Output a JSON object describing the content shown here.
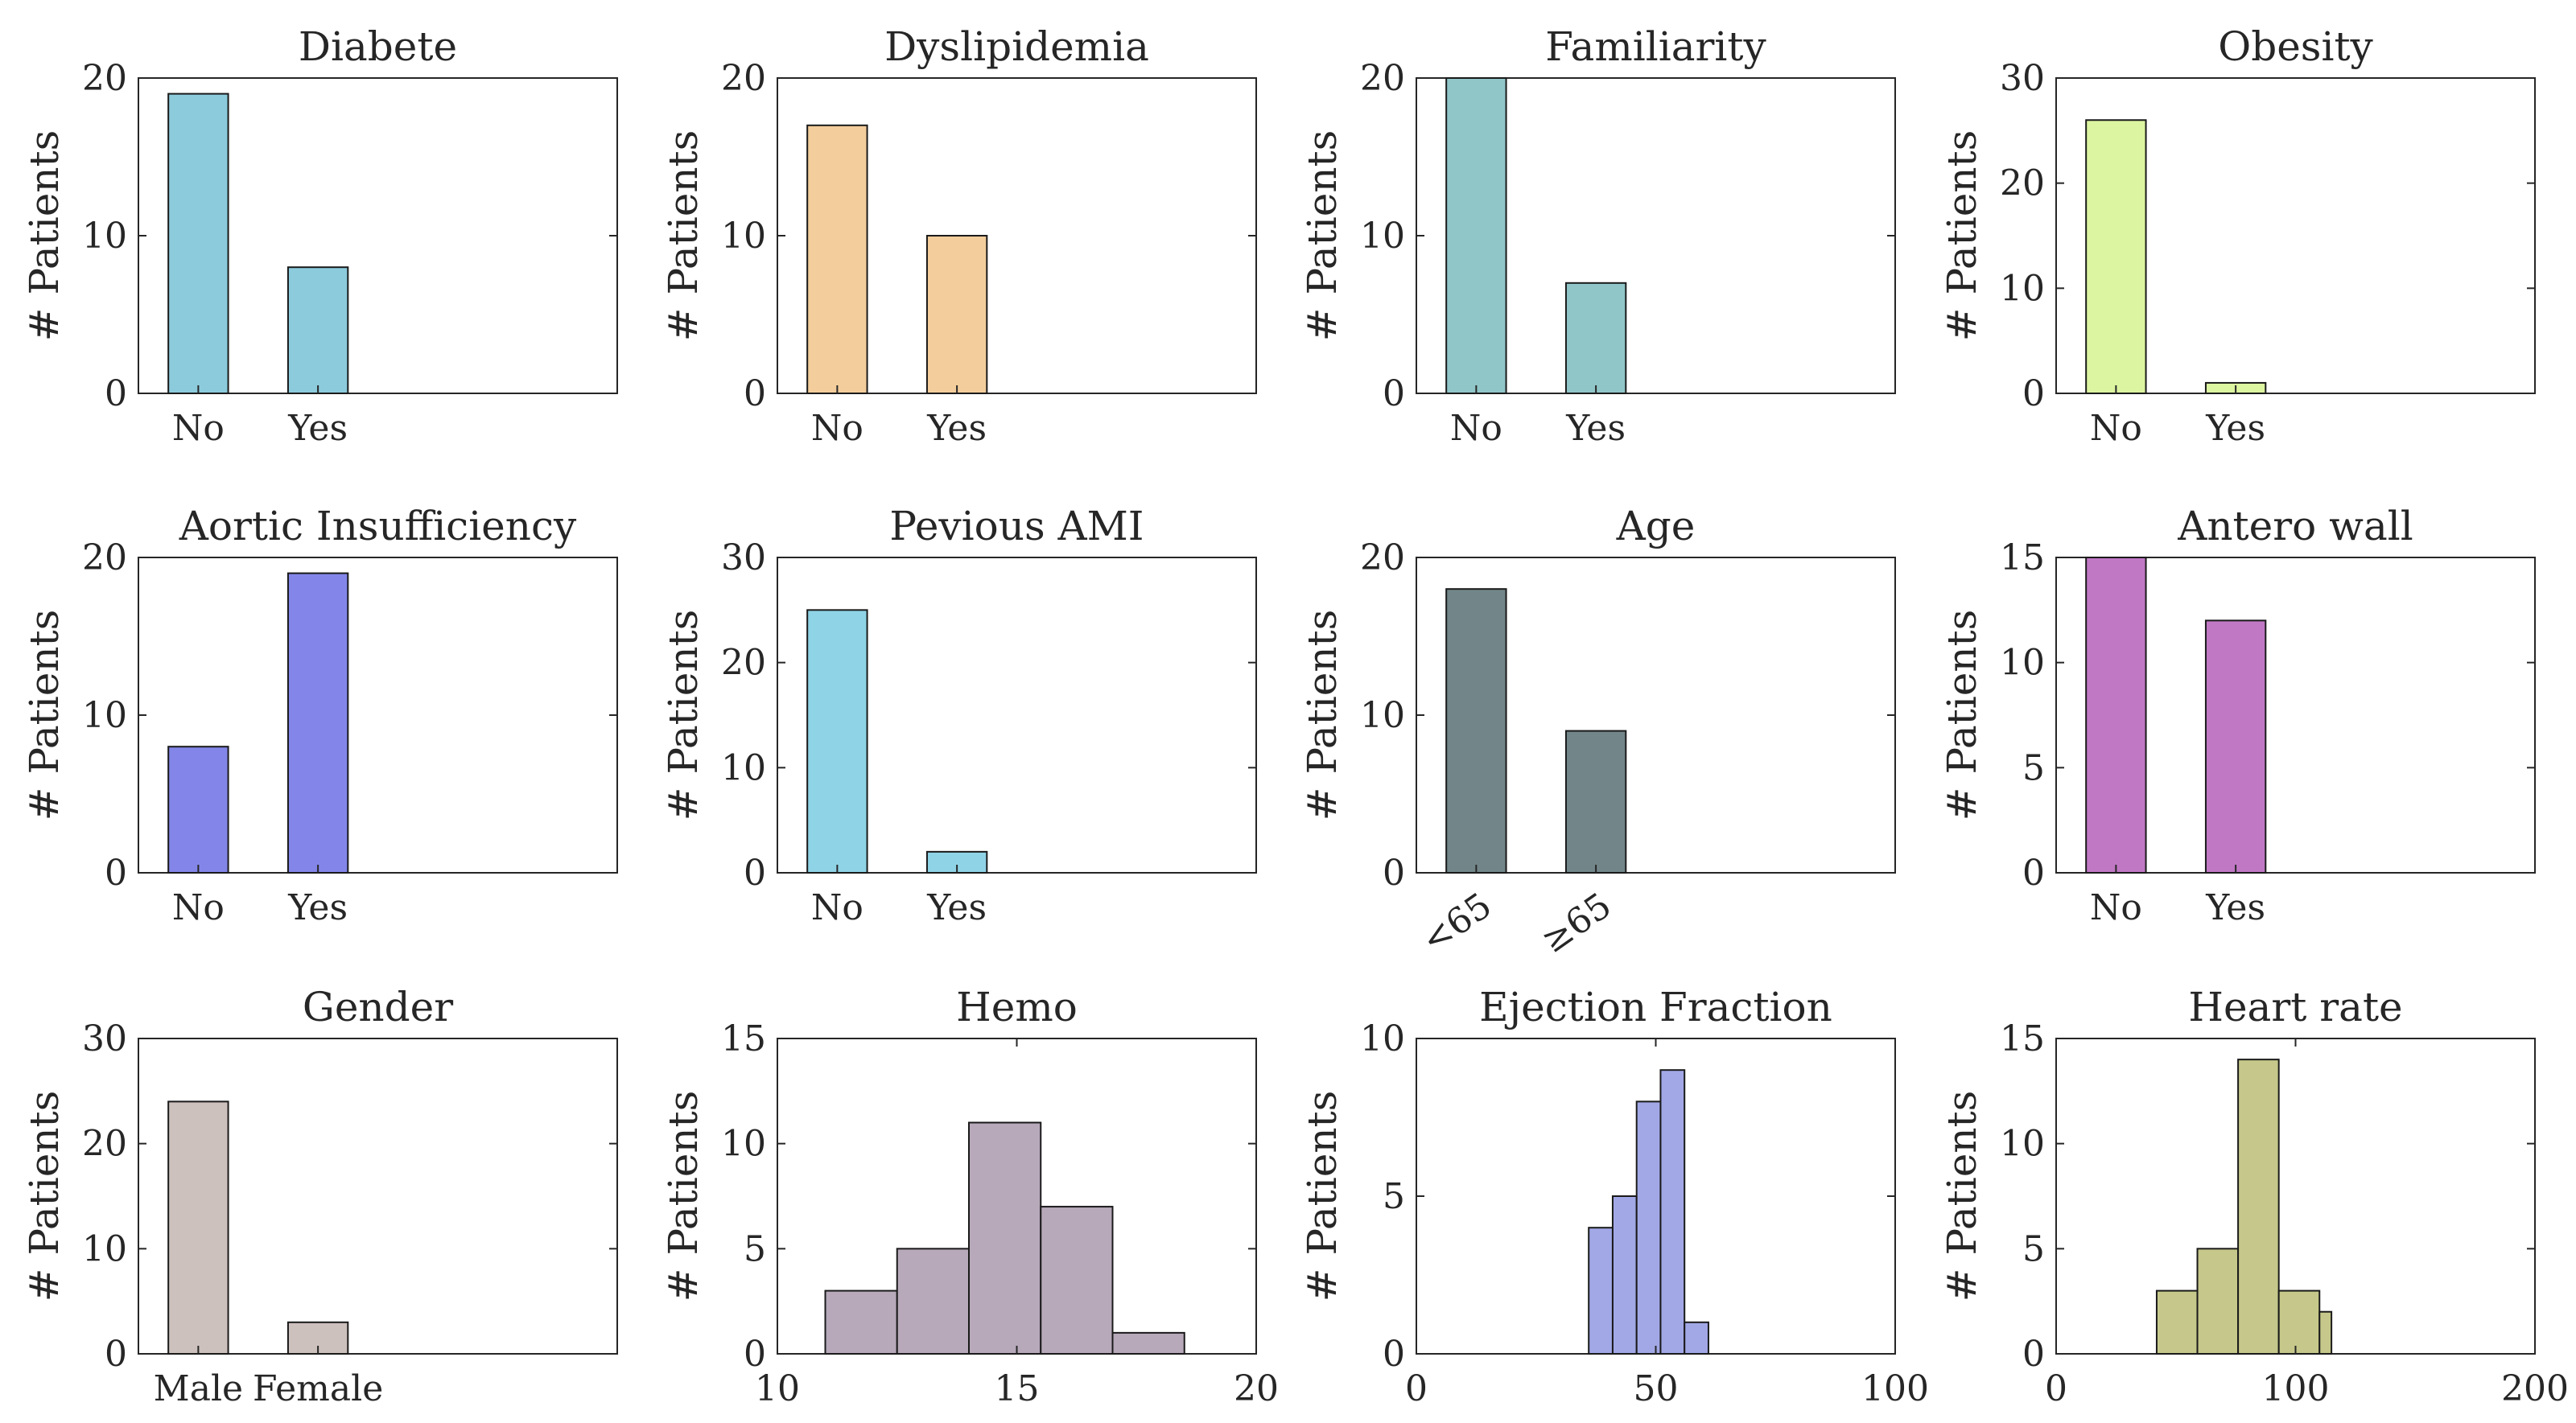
{
  "figure": {
    "ylabel_text": "# Patients"
  },
  "chart_data": [
    {
      "type": "bar",
      "title": "Diabete",
      "ylabel": "# Patients",
      "categories": [
        "No",
        "Yes"
      ],
      "values": [
        19,
        8
      ],
      "ylim": [
        0,
        20
      ],
      "yticks": [
        "0",
        "10",
        "20"
      ],
      "color": "#8ccbdc"
    },
    {
      "type": "bar",
      "title": "Dyslipidemia",
      "ylabel": "# Patients",
      "categories": [
        "No",
        "Yes"
      ],
      "values": [
        17,
        10
      ],
      "ylim": [
        0,
        20
      ],
      "yticks": [
        "0",
        "10",
        "20"
      ],
      "color": "#f3cd9b"
    },
    {
      "type": "bar",
      "title": "Familiarity",
      "ylabel": "# Patients",
      "categories": [
        "No",
        "Yes"
      ],
      "values": [
        20,
        7
      ],
      "ylim": [
        0,
        20
      ],
      "yticks": [
        "0",
        "10",
        "20"
      ],
      "color": "#91c6c8"
    },
    {
      "type": "bar",
      "title": "Obesity",
      "ylabel": "# Patients",
      "categories": [
        "No",
        "Yes"
      ],
      "values": [
        26,
        1
      ],
      "ylim": [
        0,
        30
      ],
      "yticks": [
        "0",
        "10",
        "20",
        "30"
      ],
      "color": "#dcf5a0"
    },
    {
      "type": "bar",
      "title": "Aortic Insufficiency",
      "ylabel": "# Patients",
      "categories": [
        "No",
        "Yes"
      ],
      "values": [
        8,
        19
      ],
      "ylim": [
        0,
        20
      ],
      "yticks": [
        "0",
        "10",
        "20"
      ],
      "color": "#8386e8"
    },
    {
      "type": "bar",
      "title": "Pevious AMI",
      "ylabel": "# Patients",
      "categories": [
        "No",
        "Yes"
      ],
      "values": [
        25,
        2
      ],
      "ylim": [
        0,
        30
      ],
      "yticks": [
        "0",
        "10",
        "20",
        "30"
      ],
      "color": "#8fd3e6"
    },
    {
      "type": "bar",
      "title": "Age",
      "ylabel": "# Patients",
      "categories": [
        "<65",
        "≥65"
      ],
      "values": [
        18,
        9
      ],
      "ylim": [
        0,
        20
      ],
      "yticks": [
        "0",
        "10",
        "20"
      ],
      "color": "#728689",
      "rotated_ticks": true
    },
    {
      "type": "bar",
      "title": "Antero wall",
      "ylabel": "# Patients",
      "categories": [
        "No",
        "Yes"
      ],
      "values": [
        15,
        12
      ],
      "ylim": [
        0,
        15
      ],
      "yticks": [
        "0",
        "5",
        "10",
        "15"
      ],
      "color": "#c078c4"
    },
    {
      "type": "bar",
      "title": "Gender",
      "ylabel": "# Patients",
      "categories": [
        "Male",
        "Female"
      ],
      "values": [
        24,
        3
      ],
      "ylim": [
        0,
        30
      ],
      "yticks": [
        "0",
        "10",
        "20",
        "30"
      ],
      "color": "#cdc1bd"
    },
    {
      "type": "histogram",
      "title": "Hemo",
      "ylabel": "# Patients",
      "bin_edges": [
        11,
        12.5,
        14,
        15.5,
        17,
        18.5
      ],
      "counts": [
        3,
        5,
        11,
        7,
        1
      ],
      "xlim": [
        10,
        20
      ],
      "xticks": [
        "10",
        "15",
        "20"
      ],
      "ylim": [
        0,
        15
      ],
      "yticks": [
        "0",
        "5",
        "10",
        "15"
      ],
      "color": "#b7a9b9"
    },
    {
      "type": "histogram",
      "title": "Ejection Fraction",
      "ylabel": "# Patients",
      "bin_edges": [
        36,
        41,
        46,
        51,
        56,
        61
      ],
      "counts": [
        4,
        5,
        8,
        9,
        1
      ],
      "xlim": [
        0,
        100
      ],
      "xticks": [
        "0",
        "50",
        "100"
      ],
      "ylim": [
        0,
        10
      ],
      "yticks": [
        "0",
        "5",
        "10"
      ],
      "color": "#a2a8e6"
    },
    {
      "type": "histogram",
      "title": "Heart rate",
      "ylabel": "# Patients",
      "bin_edges": [
        42,
        59,
        76,
        93,
        110,
        115
      ],
      "counts": [
        3,
        5,
        14,
        3,
        2
      ],
      "xlim": [
        0,
        200
      ],
      "xticks": [
        "0",
        "100",
        "200"
      ],
      "ylim": [
        0,
        15
      ],
      "yticks": [
        "0",
        "5",
        "10",
        "15"
      ],
      "color": "#c5c88a"
    }
  ]
}
